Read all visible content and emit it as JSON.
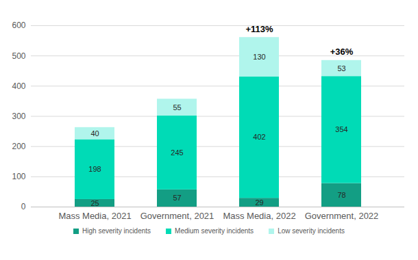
{
  "chart_data": {
    "type": "bar",
    "stacked": true,
    "data_labels": true,
    "grid": true,
    "legend": "bottom",
    "categories": [
      "Mass Media, 2021",
      "Government, 2021",
      "Mass Media, 2022",
      "Government, 2022"
    ],
    "series": [
      {
        "name": "High severity incidents",
        "color": "#139e84",
        "values": [
          25,
          57,
          29,
          78
        ]
      },
      {
        "name": "Medium severity incidents",
        "color": "#00dbb6",
        "values": [
          198,
          245,
          402,
          354
        ]
      },
      {
        "name": "Low severity incidents",
        "color": "#b0f5ec",
        "values": [
          40,
          55,
          130,
          53
        ]
      }
    ],
    "annotations": [
      {
        "text": "+113%",
        "category": "Mass Media, 2022"
      },
      {
        "text": "+36%",
        "category": "Government, 2022"
      }
    ],
    "ylim": [
      0,
      600
    ],
    "yticks": [
      0,
      100,
      200,
      300,
      400,
      500,
      600
    ]
  }
}
